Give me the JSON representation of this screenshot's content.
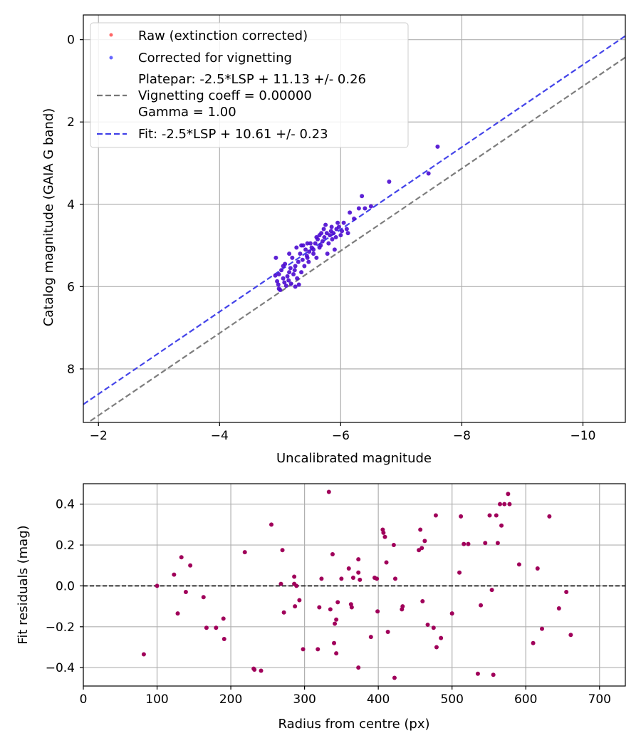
{
  "chart_data": [
    {
      "type": "scatter",
      "xlabel": "Uncalibrated magnitude",
      "ylabel": "Catalog magnitude (GAIA G band)",
      "xlim": [
        -1.75,
        -10.7
      ],
      "ylim": [
        9.3,
        -0.6
      ],
      "x_inverted": true,
      "y_inverted": true,
      "grid": true,
      "legend_position": "top-left",
      "xticks": [
        -2,
        -4,
        -6,
        -8,
        -10
      ],
      "xtick_labels": [
        "−2",
        "−4",
        "−6",
        "−8",
        "−10"
      ],
      "yticks": [
        0,
        2,
        4,
        6,
        8
      ],
      "ytick_labels": [
        "0",
        "2",
        "4",
        "6",
        "8"
      ],
      "legend": [
        {
          "label": "Raw (extinction corrected)",
          "kind": "marker",
          "color": "#ff4040"
        },
        {
          "label": "Corrected for vignetting",
          "kind": "marker",
          "color": "#4040ff"
        },
        {
          "label_lines": [
            "Platepar: -2.5*LSP + 11.13 +/- 0.26",
            "Vignetting coeff = 0.00000",
            "Gamma = 1.00"
          ],
          "kind": "dashed-line",
          "color": "#777777"
        },
        {
          "label": "Fit: -2.5*LSP + 10.61 +/- 0.23",
          "kind": "dashed-line",
          "color": "#4040e8"
        }
      ],
      "lines": [
        {
          "name": "Platepar",
          "offset": 11.13,
          "color": "#777777"
        },
        {
          "name": "Fit",
          "offset": 10.61,
          "color": "#3a3ae8"
        }
      ],
      "point_color": "#4b0ad0",
      "points": [
        [
          -4.93,
          5.3
        ],
        [
          -4.92,
          5.73
        ],
        [
          -4.95,
          5.87
        ],
        [
          -4.97,
          5.95
        ],
        [
          -4.98,
          6.05
        ],
        [
          -5.0,
          6.08
        ],
        [
          -5.02,
          5.6
        ],
        [
          -5.05,
          5.8
        ],
        [
          -5.07,
          5.9
        ],
        [
          -5.08,
          5.45
        ],
        [
          -5.1,
          5.98
        ],
        [
          -5.12,
          5.75
        ],
        [
          -5.14,
          5.85
        ],
        [
          -5.15,
          5.65
        ],
        [
          -5.17,
          5.55
        ],
        [
          -5.18,
          5.93
        ],
        [
          -5.2,
          5.3
        ],
        [
          -5.22,
          5.7
        ],
        [
          -5.24,
          5.6
        ],
        [
          -5.25,
          5.5
        ],
        [
          -5.27,
          5.05
        ],
        [
          -5.28,
          5.8
        ],
        [
          -5.3,
          5.4
        ],
        [
          -5.31,
          5.95
        ],
        [
          -5.33,
          5.2
        ],
        [
          -5.35,
          5.65
        ],
        [
          -5.37,
          5.35
        ],
        [
          -5.38,
          5.0
        ],
        [
          -5.4,
          5.5
        ],
        [
          -5.42,
          5.1
        ],
        [
          -5.44,
          5.25
        ],
        [
          -5.45,
          4.95
        ],
        [
          -5.47,
          5.4
        ],
        [
          -5.48,
          5.15
        ],
        [
          -5.5,
          4.95
        ],
        [
          -5.52,
          5.05
        ],
        [
          -5.55,
          5.1
        ],
        [
          -5.58,
          4.95
        ],
        [
          -5.6,
          5.3
        ],
        [
          -5.62,
          4.85
        ],
        [
          -5.65,
          4.75
        ],
        [
          -5.67,
          5.0
        ],
        [
          -5.68,
          4.7
        ],
        [
          -5.7,
          4.9
        ],
        [
          -5.72,
          4.6
        ],
        [
          -5.73,
          4.8
        ],
        [
          -5.75,
          4.5
        ],
        [
          -5.77,
          4.7
        ],
        [
          -5.78,
          5.2
        ],
        [
          -5.8,
          4.95
        ],
        [
          -5.82,
          4.75
        ],
        [
          -5.84,
          4.65
        ],
        [
          -5.86,
          4.85
        ],
        [
          -5.88,
          4.7
        ],
        [
          -5.9,
          5.1
        ],
        [
          -5.92,
          4.8
        ],
        [
          -5.93,
          4.6
        ],
        [
          -5.95,
          4.45
        ],
        [
          -5.97,
          4.55
        ],
        [
          -6.0,
          4.75
        ],
        [
          -6.02,
          4.65
        ],
        [
          -6.05,
          4.45
        ],
        [
          -6.1,
          4.6
        ],
        [
          -6.12,
          4.7
        ],
        [
          -6.15,
          4.2
        ],
        [
          -6.22,
          4.35
        ],
        [
          -6.3,
          4.1
        ],
        [
          -6.4,
          4.1
        ],
        [
          -6.35,
          3.8
        ],
        [
          -6.5,
          4.05
        ],
        [
          -6.8,
          3.45
        ],
        [
          -7.45,
          3.25
        ],
        [
          -7.6,
          2.6
        ],
        [
          -5.15,
          5.2
        ],
        [
          -5.35,
          5.0
        ],
        [
          -5.45,
          5.3
        ],
        [
          -5.55,
          5.2
        ],
        [
          -5.65,
          5.05
        ],
        [
          -5.05,
          5.5
        ],
        [
          -4.98,
          5.7
        ],
        [
          -5.25,
          6.0
        ],
        [
          -5.85,
          4.55
        ],
        [
          -5.6,
          4.8
        ]
      ]
    },
    {
      "type": "scatter",
      "xlabel": "Radius from centre (px)",
      "ylabel": "Fit residuals (mag)",
      "xlim": [
        0,
        735
      ],
      "ylim": [
        -0.49,
        0.5
      ],
      "grid": true,
      "xticks": [
        0,
        100,
        200,
        300,
        400,
        500,
        600,
        700
      ],
      "xtick_labels": [
        "0",
        "100",
        "200",
        "300",
        "400",
        "500",
        "600",
        "700"
      ],
      "yticks": [
        -0.4,
        -0.2,
        0.0,
        0.2,
        0.4
      ],
      "ytick_labels": [
        "−0.4",
        "−0.2",
        "0.0",
        "0.2",
        "0.4"
      ],
      "zero_line": {
        "y": 0,
        "style": "dashed",
        "color": "#333333"
      },
      "point_color": "#a0005a",
      "points": [
        [
          82,
          -0.335
        ],
        [
          100,
          0.0
        ],
        [
          123,
          0.055
        ],
        [
          128,
          -0.135
        ],
        [
          133,
          0.14
        ],
        [
          139,
          -0.03
        ],
        [
          145,
          0.1
        ],
        [
          163,
          -0.055
        ],
        [
          167,
          -0.205
        ],
        [
          180,
          -0.205
        ],
        [
          190,
          -0.16
        ],
        [
          191,
          -0.26
        ],
        [
          219,
          0.165
        ],
        [
          231,
          -0.405
        ],
        [
          232,
          -0.41
        ],
        [
          241,
          -0.415
        ],
        [
          255,
          0.3
        ],
        [
          268,
          0.01
        ],
        [
          270,
          0.175
        ],
        [
          272,
          -0.13
        ],
        [
          286,
          0.045
        ],
        [
          286,
          0.01
        ],
        [
          287,
          -0.1
        ],
        [
          289,
          0.0
        ],
        [
          293,
          -0.07
        ],
        [
          298,
          -0.31
        ],
        [
          318,
          -0.31
        ],
        [
          320,
          -0.105
        ],
        [
          323,
          0.035
        ],
        [
          333,
          0.46
        ],
        [
          335,
          -0.115
        ],
        [
          338,
          0.155
        ],
        [
          340,
          -0.28
        ],
        [
          341,
          -0.185
        ],
        [
          343,
          -0.165
        ],
        [
          343,
          -0.33
        ],
        [
          345,
          -0.08
        ],
        [
          350,
          0.035
        ],
        [
          360,
          0.085
        ],
        [
          363,
          -0.09
        ],
        [
          364,
          -0.105
        ],
        [
          366,
          0.04
        ],
        [
          373,
          -0.4
        ],
        [
          373,
          0.065
        ],
        [
          373,
          0.13
        ],
        [
          375,
          0.03
        ],
        [
          390,
          -0.25
        ],
        [
          395,
          0.04
        ],
        [
          398,
          0.035
        ],
        [
          399,
          -0.125
        ],
        [
          406,
          0.275
        ],
        [
          407,
          0.26
        ],
        [
          409,
          0.24
        ],
        [
          411,
          0.115
        ],
        [
          413,
          -0.225
        ],
        [
          421,
          0.2
        ],
        [
          422,
          -0.45
        ],
        [
          423,
          0.035
        ],
        [
          432,
          -0.115
        ],
        [
          433,
          -0.1
        ],
        [
          455,
          0.175
        ],
        [
          457,
          0.275
        ],
        [
          459,
          0.185
        ],
        [
          460,
          -0.075
        ],
        [
          463,
          0.22
        ],
        [
          467,
          -0.19
        ],
        [
          475,
          -0.205
        ],
        [
          478,
          0.345
        ],
        [
          479,
          -0.3
        ],
        [
          485,
          -0.255
        ],
        [
          500,
          -0.135
        ],
        [
          510,
          0.065
        ],
        [
          512,
          0.34
        ],
        [
          516,
          0.205
        ],
        [
          522,
          0.205
        ],
        [
          535,
          -0.43
        ],
        [
          539,
          -0.095
        ],
        [
          545,
          0.21
        ],
        [
          551,
          0.345
        ],
        [
          554,
          -0.02
        ],
        [
          556,
          -0.435
        ],
        [
          560,
          0.345
        ],
        [
          562,
          0.21
        ],
        [
          565,
          0.4
        ],
        [
          567,
          0.295
        ],
        [
          571,
          0.4
        ],
        [
          576,
          0.45
        ],
        [
          578,
          0.4
        ],
        [
          591,
          0.105
        ],
        [
          610,
          -0.28
        ],
        [
          616,
          0.085
        ],
        [
          622,
          -0.21
        ],
        [
          632,
          0.34
        ],
        [
          645,
          -0.11
        ],
        [
          655,
          -0.03
        ],
        [
          661,
          -0.24
        ]
      ]
    }
  ]
}
